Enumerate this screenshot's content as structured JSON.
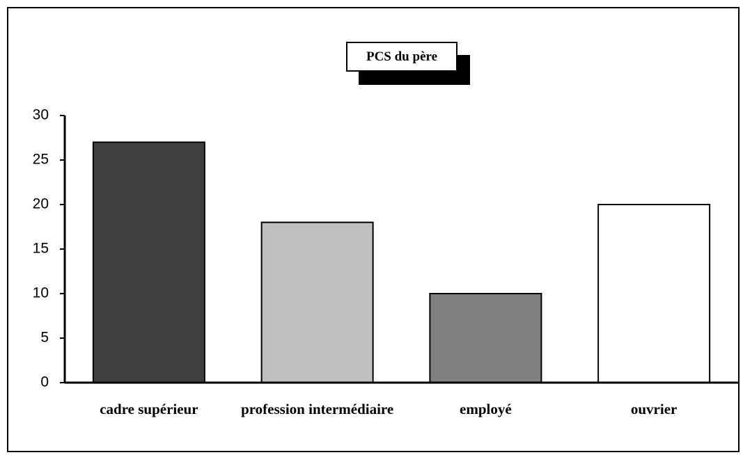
{
  "chart_data": {
    "type": "bar",
    "title": "PCS du père",
    "categories": [
      "cadre supérieur",
      "profession intermédiaire",
      "employé",
      "ouvrier"
    ],
    "values": [
      27,
      18,
      10,
      20
    ],
    "colors": [
      "#404040",
      "#c0c0c0",
      "#808080",
      "#ffffff"
    ],
    "ylim": [
      0,
      30
    ],
    "yticks": [
      0,
      5,
      10,
      15,
      20,
      25,
      30
    ]
  }
}
